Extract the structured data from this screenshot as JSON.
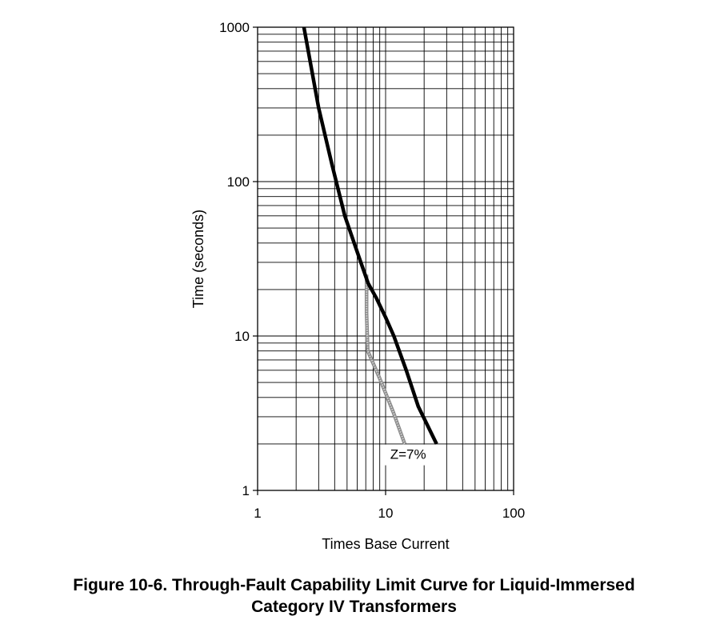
{
  "caption": {
    "line1": "Figure 10-6. Through-Fault Capability Limit Curve for Liquid-Immersed",
    "line2": "Category IV Transformers"
  },
  "chart_data": {
    "type": "line",
    "xlabel": "Times Base Current",
    "ylabel": "Time (seconds)",
    "xscale": "log",
    "yscale": "log",
    "xlim": [
      1,
      100
    ],
    "ylim": [
      1,
      1000
    ],
    "grid": true,
    "x_ticks": [
      1,
      10,
      100
    ],
    "x_tick_labels": [
      "1",
      "10",
      "100"
    ],
    "y_ticks": [
      1,
      10,
      100,
      1000
    ],
    "y_tick_labels": [
      "1",
      "10",
      "100",
      "1000"
    ],
    "series": [
      {
        "color": "#000000",
        "style": "solid-thick",
        "x": [
          2.3,
          3.0,
          3.8,
          4.8,
          6.4,
          7.3,
          8.5,
          10.0,
          11.6,
          14.5,
          18.0,
          25.0
        ],
        "y": [
          1000,
          300,
          130,
          60,
          30,
          22,
          17.5,
          13.2,
          10,
          6,
          3.5,
          2
        ]
      },
      {
        "name": "Z=7%",
        "color": "#8a8a8a",
        "style": "hatched-gray",
        "x": [
          7.1,
          7.1,
          7.25,
          9.0,
          11.5,
          14.1
        ],
        "y": [
          25,
          14,
          8,
          5.3,
          3.2,
          2.0
        ]
      }
    ],
    "annotations": [
      {
        "text": "Z=7%",
        "x": 15.0,
        "y": 1.6
      }
    ]
  }
}
